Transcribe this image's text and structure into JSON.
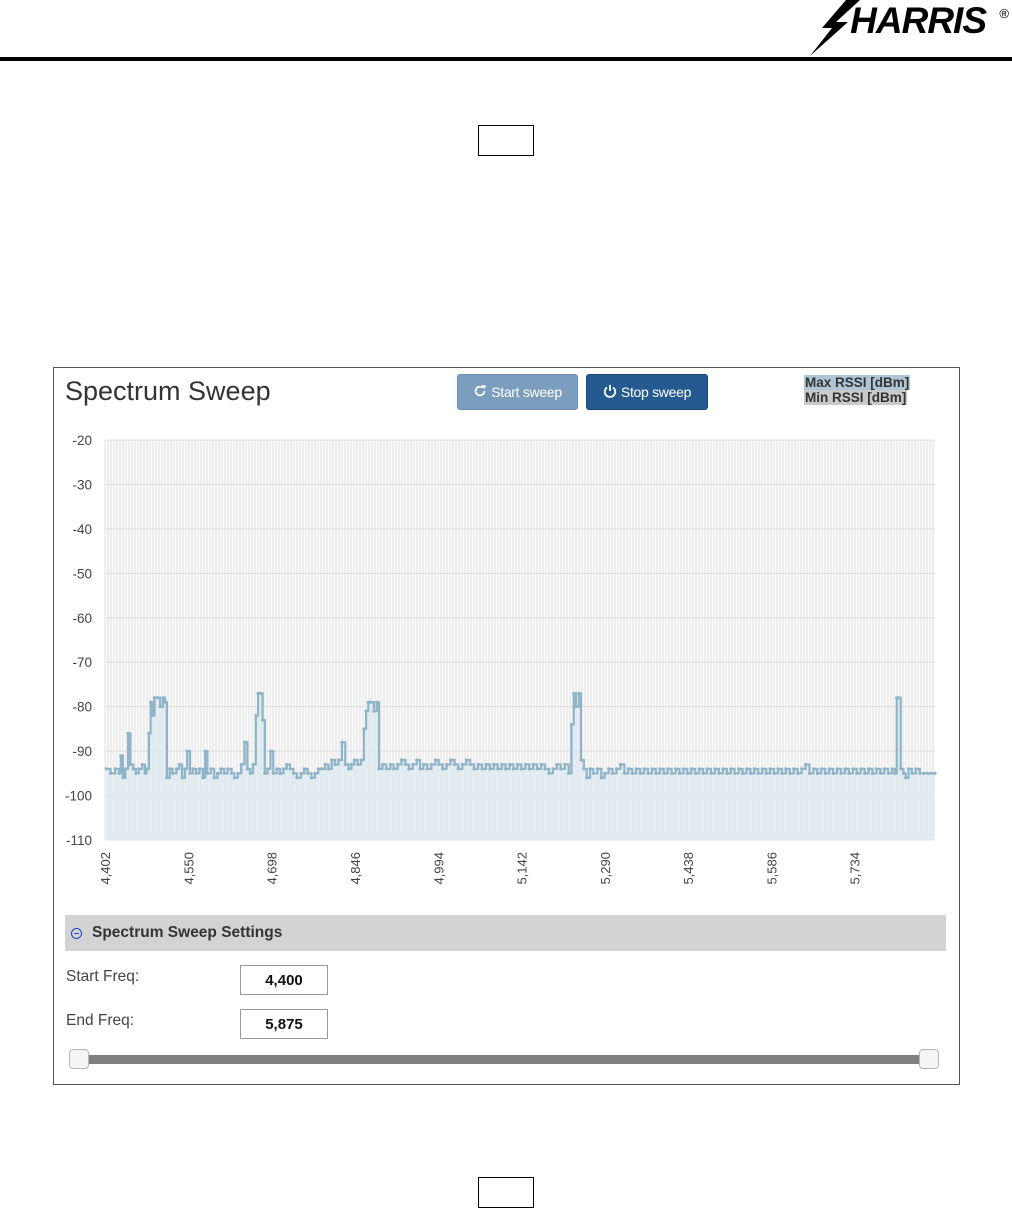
{
  "header": {
    "brand": "HARRIS",
    "registered_mark": "®"
  },
  "page_markers": {
    "top": "",
    "bottom": ""
  },
  "panel": {
    "title": "Spectrum Sweep",
    "start_button": "Start sweep",
    "stop_button": "Stop sweep",
    "legend": {
      "max": "Max RSSI [dBm]",
      "min": "Min RSSI [dBm]"
    },
    "colors": {
      "series_line": "#8fb4c9",
      "series_fill": "#dbe8ef",
      "start_btn": "#7b9ebf",
      "stop_btn": "#245a8f"
    }
  },
  "settings": {
    "title": "Spectrum Sweep Settings",
    "start_label": "Start Freq:",
    "start_value": "4,400",
    "end_label": "End Freq:",
    "end_value": "5,875",
    "range_slider": {
      "min_fraction": 0.0,
      "max_fraction": 1.0
    }
  },
  "chart_data": {
    "type": "line",
    "ylim": [
      -110,
      -20
    ],
    "yticks": [
      -20,
      -30,
      -40,
      -50,
      -60,
      -70,
      -80,
      -90,
      -100,
      -110
    ],
    "xlim": [
      4400,
      5875
    ],
    "xticks": [
      "4,402",
      "4,550",
      "4,698",
      "4,846",
      "4,994",
      "5,142",
      "5,290",
      "5,438",
      "5,586",
      "5,734"
    ],
    "xtick_values": [
      4402,
      4550,
      4698,
      4846,
      4994,
      5142,
      5290,
      5438,
      5586,
      5734
    ],
    "grid": true,
    "legend_position": "top-right",
    "series": [
      {
        "name": "Max RSSI [dBm]",
        "points": [
          [
            4402,
            -94
          ],
          [
            4410,
            -95
          ],
          [
            4418,
            -94
          ],
          [
            4425,
            -95
          ],
          [
            4428,
            -91
          ],
          [
            4432,
            -96
          ],
          [
            4436,
            -94
          ],
          [
            4441,
            -86
          ],
          [
            4445,
            -93
          ],
          [
            4450,
            -94
          ],
          [
            4455,
            -95
          ],
          [
            4460,
            -94
          ],
          [
            4466,
            -93
          ],
          [
            4471,
            -95
          ],
          [
            4474,
            -94
          ],
          [
            4478,
            -86
          ],
          [
            4481,
            -79
          ],
          [
            4484,
            -82
          ],
          [
            4488,
            -78
          ],
          [
            4494,
            -78
          ],
          [
            4498,
            -80
          ],
          [
            4503,
            -78
          ],
          [
            4507,
            -79
          ],
          [
            4510,
            -96
          ],
          [
            4515,
            -94
          ],
          [
            4520,
            -95
          ],
          [
            4527,
            -94
          ],
          [
            4532,
            -93
          ],
          [
            4537,
            -96
          ],
          [
            4542,
            -94
          ],
          [
            4546,
            -90
          ],
          [
            4551,
            -95
          ],
          [
            4556,
            -94
          ],
          [
            4562,
            -95
          ],
          [
            4568,
            -94
          ],
          [
            4574,
            -96
          ],
          [
            4578,
            -90
          ],
          [
            4582,
            -95
          ],
          [
            4588,
            -94
          ],
          [
            4594,
            -96
          ],
          [
            4600,
            -95
          ],
          [
            4606,
            -94
          ],
          [
            4612,
            -95
          ],
          [
            4618,
            -94
          ],
          [
            4625,
            -95
          ],
          [
            4630,
            -96
          ],
          [
            4636,
            -95
          ],
          [
            4642,
            -93
          ],
          [
            4648,
            -88
          ],
          [
            4653,
            -94
          ],
          [
            4658,
            -95
          ],
          [
            4663,
            -93
          ],
          [
            4668,
            -82
          ],
          [
            4672,
            -77
          ],
          [
            4676,
            -77
          ],
          [
            4680,
            -83
          ],
          [
            4684,
            -95
          ],
          [
            4689,
            -94
          ],
          [
            4694,
            -90
          ],
          [
            4699,
            -95
          ],
          [
            4705,
            -94
          ],
          [
            4711,
            -95
          ],
          [
            4717,
            -94
          ],
          [
            4723,
            -93
          ],
          [
            4729,
            -94
          ],
          [
            4735,
            -95
          ],
          [
            4741,
            -96
          ],
          [
            4748,
            -95
          ],
          [
            4754,
            -94
          ],
          [
            4760,
            -95
          ],
          [
            4767,
            -96
          ],
          [
            4773,
            -95
          ],
          [
            4779,
            -94
          ],
          [
            4785,
            -94
          ],
          [
            4791,
            -93
          ],
          [
            4797,
            -94
          ],
          [
            4803,
            -92
          ],
          [
            4809,
            -93
          ],
          [
            4815,
            -92
          ],
          [
            4821,
            -88
          ],
          [
            4827,
            -93
          ],
          [
            4833,
            -94
          ],
          [
            4838,
            -93
          ],
          [
            4843,
            -92
          ],
          [
            4849,
            -93
          ],
          [
            4855,
            -92
          ],
          [
            4860,
            -85
          ],
          [
            4864,
            -81
          ],
          [
            4868,
            -79
          ],
          [
            4873,
            -79
          ],
          [
            4878,
            -81
          ],
          [
            4883,
            -79
          ],
          [
            4887,
            -94
          ],
          [
            4893,
            -93
          ],
          [
            4900,
            -94
          ],
          [
            4907,
            -93
          ],
          [
            4913,
            -94
          ],
          [
            4920,
            -93
          ],
          [
            4927,
            -92
          ],
          [
            4934,
            -93
          ],
          [
            4940,
            -94
          ],
          [
            4947,
            -93
          ],
          [
            4954,
            -92
          ],
          [
            4960,
            -94
          ],
          [
            4966,
            -93
          ],
          [
            4973,
            -94
          ],
          [
            4980,
            -93
          ],
          [
            4987,
            -92
          ],
          [
            4993,
            -93
          ],
          [
            5000,
            -94
          ],
          [
            5007,
            -93
          ],
          [
            5014,
            -92
          ],
          [
            5021,
            -93
          ],
          [
            5028,
            -94
          ],
          [
            5035,
            -93
          ],
          [
            5042,
            -92
          ],
          [
            5049,
            -93
          ],
          [
            5056,
            -94
          ],
          [
            5063,
            -93
          ],
          [
            5070,
            -94
          ],
          [
            5077,
            -93
          ],
          [
            5084,
            -94
          ],
          [
            5091,
            -93
          ],
          [
            5098,
            -94
          ],
          [
            5105,
            -93
          ],
          [
            5112,
            -94
          ],
          [
            5119,
            -93
          ],
          [
            5126,
            -94
          ],
          [
            5133,
            -93
          ],
          [
            5140,
            -94
          ],
          [
            5147,
            -93
          ],
          [
            5154,
            -94
          ],
          [
            5161,
            -93
          ],
          [
            5168,
            -94
          ],
          [
            5175,
            -93
          ],
          [
            5182,
            -94
          ],
          [
            5189,
            -95
          ],
          [
            5196,
            -94
          ],
          [
            5203,
            -93
          ],
          [
            5210,
            -94
          ],
          [
            5217,
            -93
          ],
          [
            5224,
            -95
          ],
          [
            5229,
            -84
          ],
          [
            5233,
            -77
          ],
          [
            5237,
            -80
          ],
          [
            5242,
            -77
          ],
          [
            5246,
            -92
          ],
          [
            5251,
            -94
          ],
          [
            5256,
            -96
          ],
          [
            5262,
            -94
          ],
          [
            5268,
            -95
          ],
          [
            5275,
            -94
          ],
          [
            5282,
            -96
          ],
          [
            5288,
            -95
          ],
          [
            5295,
            -94
          ],
          [
            5302,
            -95
          ],
          [
            5309,
            -94
          ],
          [
            5316,
            -93
          ],
          [
            5323,
            -95
          ],
          [
            5330,
            -94
          ],
          [
            5337,
            -95
          ],
          [
            5344,
            -94
          ],
          [
            5351,
            -95
          ],
          [
            5358,
            -94
          ],
          [
            5365,
            -95
          ],
          [
            5372,
            -94
          ],
          [
            5379,
            -95
          ],
          [
            5386,
            -94
          ],
          [
            5393,
            -95
          ],
          [
            5400,
            -94
          ],
          [
            5407,
            -95
          ],
          [
            5414,
            -94
          ],
          [
            5421,
            -95
          ],
          [
            5428,
            -94
          ],
          [
            5435,
            -95
          ],
          [
            5442,
            -94
          ],
          [
            5449,
            -95
          ],
          [
            5456,
            -94
          ],
          [
            5463,
            -95
          ],
          [
            5470,
            -94
          ],
          [
            5477,
            -95
          ],
          [
            5484,
            -94
          ],
          [
            5491,
            -95
          ],
          [
            5498,
            -94
          ],
          [
            5505,
            -95
          ],
          [
            5512,
            -94
          ],
          [
            5519,
            -95
          ],
          [
            5526,
            -94
          ],
          [
            5533,
            -95
          ],
          [
            5540,
            -94
          ],
          [
            5547,
            -95
          ],
          [
            5554,
            -94
          ],
          [
            5561,
            -95
          ],
          [
            5568,
            -94
          ],
          [
            5575,
            -95
          ],
          [
            5582,
            -94
          ],
          [
            5589,
            -95
          ],
          [
            5596,
            -94
          ],
          [
            5603,
            -95
          ],
          [
            5610,
            -94
          ],
          [
            5617,
            -95
          ],
          [
            5624,
            -94
          ],
          [
            5631,
            -95
          ],
          [
            5638,
            -94
          ],
          [
            5645,
            -93
          ],
          [
            5652,
            -95
          ],
          [
            5659,
            -94
          ],
          [
            5666,
            -95
          ],
          [
            5673,
            -94
          ],
          [
            5680,
            -95
          ],
          [
            5687,
            -94
          ],
          [
            5694,
            -95
          ],
          [
            5701,
            -94
          ],
          [
            5708,
            -95
          ],
          [
            5715,
            -94
          ],
          [
            5722,
            -95
          ],
          [
            5729,
            -94
          ],
          [
            5736,
            -95
          ],
          [
            5743,
            -94
          ],
          [
            5750,
            -95
          ],
          [
            5757,
            -94
          ],
          [
            5764,
            -95
          ],
          [
            5771,
            -94
          ],
          [
            5778,
            -95
          ],
          [
            5785,
            -94
          ],
          [
            5792,
            -95
          ],
          [
            5799,
            -94
          ],
          [
            5804,
            -95
          ],
          [
            5807,
            -78
          ],
          [
            5810,
            -78
          ],
          [
            5814,
            -94
          ],
          [
            5819,
            -95
          ],
          [
            5823,
            -96
          ],
          [
            5828,
            -94
          ],
          [
            5834,
            -95
          ],
          [
            5841,
            -94
          ],
          [
            5848,
            -95
          ],
          [
            5855,
            -95
          ],
          [
            5862,
            -95
          ],
          [
            5868,
            -95
          ],
          [
            5875,
            -95
          ]
        ]
      }
    ]
  }
}
